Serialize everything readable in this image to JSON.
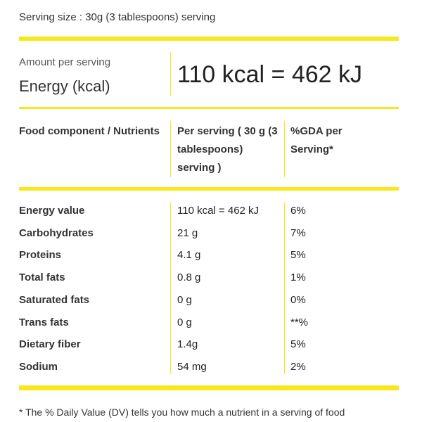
{
  "header": {
    "serving_size": "Serving size : 30g (3 tablespoons) serving"
  },
  "energy": {
    "caption": "Amount per serving",
    "label": "Energy (kcal)",
    "value": "110 kcal = 462 kJ"
  },
  "table": {
    "headers": [
      "Food component / Nutrients",
      "Per serving ( 30 g (3 tablespoons) serving )",
      "%GDA per Serving*"
    ],
    "rows": [
      [
        "Energy value",
        "110 kcal = 462 kJ",
        "6%"
      ],
      [
        "Carbohydrates",
        "21 g",
        "7%"
      ],
      [
        "Proteins",
        "4.1 g",
        "5%"
      ],
      [
        "Total fats",
        "0.8 g",
        "1%"
      ],
      [
        "Saturated fats",
        "0 g",
        "0%"
      ],
      [
        "Trans fats",
        "0 g",
        "**%"
      ],
      [
        "Dietary fiber",
        "1.4g",
        "5%"
      ],
      [
        "Sodium",
        "54 mg",
        "2%"
      ]
    ]
  },
  "footnote": "* The % Daily Value (DV) tells you how much a nutrient in a serving of food"
}
